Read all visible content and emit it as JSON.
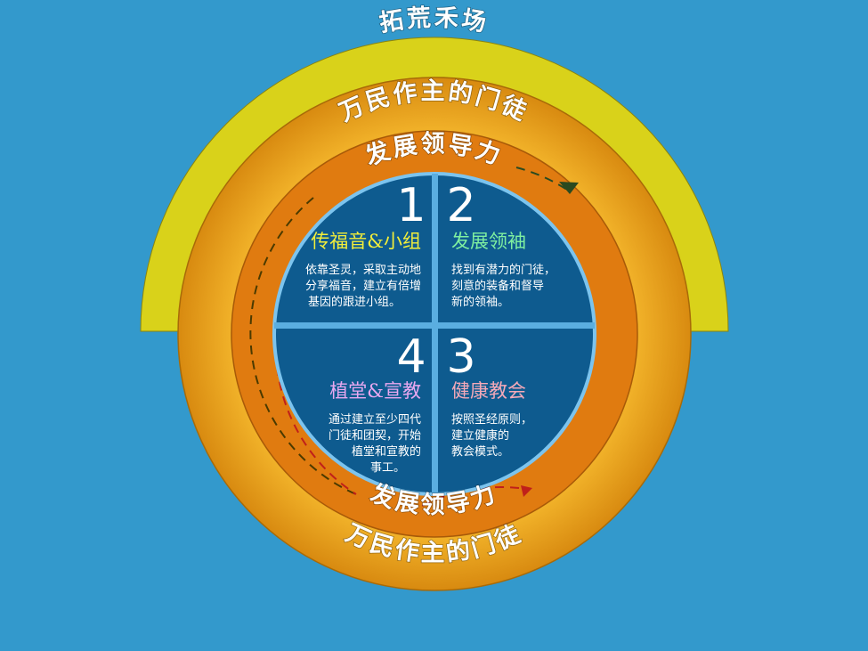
{
  "rings": {
    "outer_arc_label": "拓荒禾场",
    "middle_label_top": "万民作主的门徒",
    "middle_label_bottom": "万民作主的门徒",
    "inner_label_top": "发展领导力",
    "inner_label_bottom": "发展领导力"
  },
  "quadrants": [
    {
      "number": "1",
      "title": "传福音&小组",
      "title_color": "#f2ee3a",
      "lines": [
        "依靠圣灵，采取主动地",
        "分享福音，建立有倍增",
        "基因的跟进小组。"
      ]
    },
    {
      "number": "2",
      "title": "发展领袖",
      "title_color": "#7ff0a0",
      "lines": [
        "找到有潜力的门徒，",
        "刻意的装备和督导",
        "新的领袖。"
      ]
    },
    {
      "number": "3",
      "title": "健康教会",
      "title_color": "#f4a9b8",
      "lines": [
        "按照圣经原则，",
        "建立健康的",
        "教会模式。"
      ]
    },
    {
      "number": "4",
      "title": "植堂&宣教",
      "title_color": "#e8a8f0",
      "lines": [
        "通过建立至少四代",
        "门徒和团契，开始",
        "植堂和宣教的",
        "事工。"
      ]
    }
  ],
  "colors": {
    "background": "#3399cc",
    "outer_arc": "#d9d21a",
    "middle_ring": "#e8a21c",
    "inner_ring": "#e07b10",
    "center": "#0e5b8f",
    "divider": "#5aaee0"
  }
}
